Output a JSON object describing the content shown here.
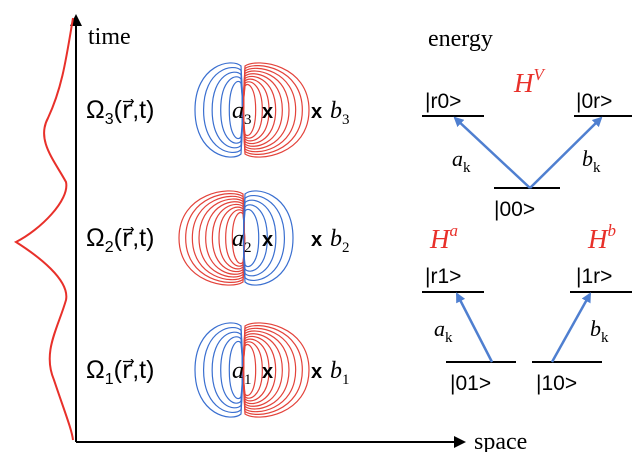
{
  "axes": {
    "time_label": "time",
    "space_label": "space",
    "energy_label": "energy"
  },
  "rows": [
    {
      "omega": "Ω",
      "sub": "3",
      "args": "(r⃗,t)",
      "a_sub": "3",
      "b_sub": "3",
      "left_color": "#3a6fd0",
      "right_color": "#e3423a"
    },
    {
      "omega": "Ω",
      "sub": "2",
      "args": "(r⃗,t)",
      "a_sub": "2",
      "b_sub": "2",
      "left_color": "#e3423a",
      "right_color": "#3a6fd0"
    },
    {
      "omega": "Ω",
      "sub": "1",
      "args": "(r⃗,t)",
      "a_sub": "1",
      "b_sub": "1",
      "left_color": "#3a6fd0",
      "right_color": "#e3423a"
    }
  ],
  "marker": "x",
  "site_a": "a",
  "site_b": "b",
  "energy": {
    "hv": {
      "label": "H",
      "sup": "V"
    },
    "ha": {
      "label": "H",
      "sup": "a"
    },
    "hb": {
      "label": "H",
      "sup": "b"
    },
    "states": {
      "r0": "|r0>",
      "zr": "|0r>",
      "zz": "|00>",
      "r1": "|r1>",
      "one_r": "|1r>",
      "z1": "|01>",
      "one_z": "|10>"
    },
    "ak": {
      "base": "a",
      "sub": "k"
    },
    "bk": {
      "base": "b",
      "sub": "k"
    }
  },
  "colors": {
    "arrow": "#4f7fd0",
    "red": "#e8302a",
    "blue": "#3a6fd0"
  }
}
